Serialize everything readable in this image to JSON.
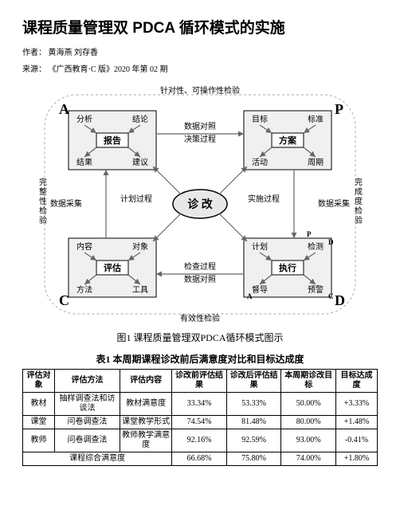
{
  "title": "课程质量管理双 PDCA 循环模式的实施",
  "author_label": "作者：",
  "authors": "黄海燕 刘存香",
  "source_label": "来源：",
  "source": "《广西教育·C 版》2020 年第 02 期",
  "figure": {
    "caption": "图1  课程质量管理双PDCA循环模式图示",
    "corners": {
      "A": "A",
      "P": "P",
      "C": "C",
      "D": "D"
    },
    "center": "诊 改",
    "top_label": "针对性、可操作性检验",
    "bottom_label": "有效性检验",
    "left_label": "完整性检验",
    "right_label": "完成度检验",
    "arrows": {
      "top1": "数据对照",
      "top2": "决策过程",
      "right1": "实施过程",
      "right2": "数据采集",
      "bottom1": "检查过程",
      "bottom2": "数据对照",
      "left1": "计划过程",
      "left2": "数据采集"
    },
    "box_tl": {
      "name": "报告",
      "t1": "分析",
      "t2": "结论",
      "b1": "结果",
      "b2": "建议"
    },
    "box_tr": {
      "name": "方案",
      "t1": "目标",
      "t2": "标准",
      "b1": "活动",
      "b2": "周期"
    },
    "box_bl": {
      "name": "评估",
      "t1": "内容",
      "t2": "对象",
      "b1": "方法",
      "b2": "工具"
    },
    "box_br": {
      "name": "执行",
      "t1": "计划",
      "t2": "检测",
      "b1": "督导",
      "b2": "预警",
      "mini": {
        "P": "P",
        "D": "D",
        "C": "C",
        "A": "A"
      }
    },
    "colors": {
      "box_fill": "#f0f0f0",
      "box_stroke": "#000000",
      "arrow_color": "#666666",
      "center_fill": "#e8e8e8",
      "text_color": "#000000"
    }
  },
  "table": {
    "caption": "表1  本周期课程诊改前后满意度对比和目标达成度",
    "columns": [
      "评估对象",
      "评估方法",
      "评估内容",
      "诊改前评估结果",
      "诊改后评估结果",
      "本周期诊改目标",
      "目标达成度"
    ],
    "rows": [
      [
        "教材",
        "抽样调查法和访谈法",
        "教材满意度",
        "33.34%",
        "53.33%",
        "50.00%",
        "+3.33%"
      ],
      [
        "课堂",
        "问卷调查法",
        "课堂教学形式",
        "74.54%",
        "81.48%",
        "80.00%",
        "+1.48%"
      ],
      [
        "教师",
        "问卷调查法",
        "教师教学满意度",
        "92.16%",
        "92.59%",
        "93.00%",
        "-0.41%"
      ]
    ],
    "overall": [
      "课程综合满意度",
      "66.68%",
      "75.80%",
      "74.00%",
      "+1.80%"
    ]
  }
}
